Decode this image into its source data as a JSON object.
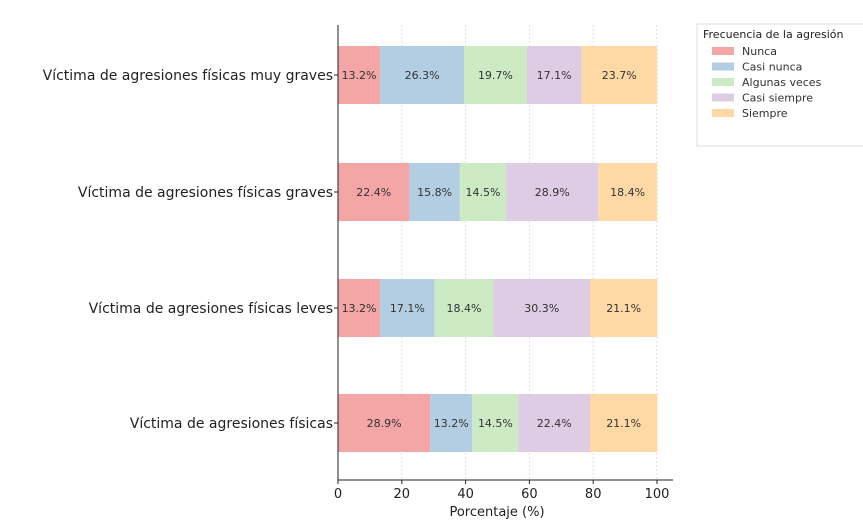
{
  "chart_data": {
    "type": "bar",
    "orientation": "horizontal",
    "stacked": true,
    "categories": [
      "Víctima de agresiones físicas muy graves",
      "Víctima de agresiones físicas graves",
      "Víctima de agresiones físicas leves",
      "Víctima de agresiones físicas"
    ],
    "series": [
      {
        "name": "Nunca",
        "color": "#f4a5a5",
        "values": [
          13.2,
          22.4,
          13.2,
          28.9
        ],
        "labels": [
          "13.2%",
          "22.4%",
          "13.2%",
          "28.9%"
        ]
      },
      {
        "name": "Casi nunca",
        "color": "#b3cde3",
        "values": [
          26.3,
          15.8,
          17.1,
          13.2
        ],
        "labels": [
          "26.3%",
          "15.8%",
          "17.1%",
          "13.2%"
        ]
      },
      {
        "name": "Algunas veces",
        "color": "#ccebc5",
        "values": [
          19.7,
          14.5,
          18.4,
          14.5
        ],
        "labels": [
          "19.7%",
          "14.5%",
          "18.4%",
          "14.5%"
        ]
      },
      {
        "name": "Casi siempre",
        "color": "#decbe4",
        "values": [
          17.1,
          28.9,
          30.3,
          22.4
        ],
        "labels": [
          "17.1%",
          "28.9%",
          "30.3%",
          "22.4%"
        ]
      },
      {
        "name": "Siempre",
        "color": "#fed9a6",
        "values": [
          23.7,
          18.4,
          21.1,
          21.1
        ],
        "labels": [
          "23.7%",
          "18.4%",
          "21.1%",
          "21.1%"
        ]
      }
    ],
    "xlabel": "Porcentaje (%)",
    "ylabel": "",
    "xlim": [
      0,
      100
    ],
    "xticks": [
      0,
      20,
      40,
      60,
      80,
      100
    ],
    "grid": "vertical",
    "legend": {
      "title": "Frecuencia de la agresión",
      "placement": "top-right outside"
    }
  }
}
